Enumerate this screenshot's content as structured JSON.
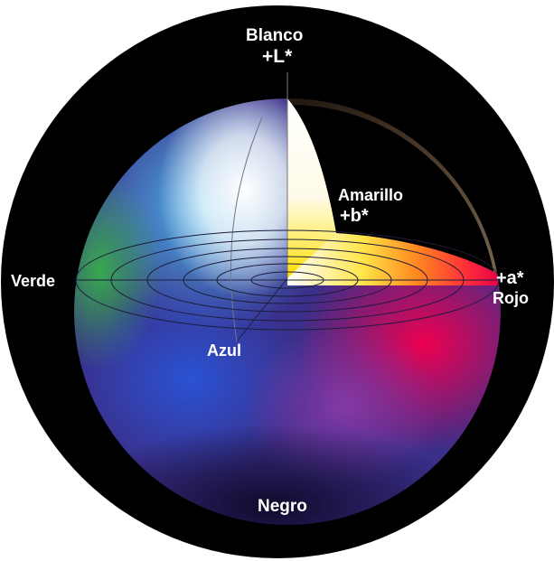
{
  "labels": {
    "white": "Blanco",
    "l_axis": "+L*",
    "yellow": "Amarillo",
    "b_axis": "+b*",
    "green": "Verde",
    "a_axis": "+a*",
    "red": "Rojo",
    "blue": "Azul",
    "black": "Negro"
  },
  "colors": {
    "background_disk": "#000000",
    "label_text": "#ffffff",
    "white_pole": "#ffffff",
    "yellow": "#ffe600",
    "red": "#e8004a",
    "green": "#3fb24a",
    "blue": "#1e5fd8",
    "dark_bottom": "#1a1038"
  }
}
